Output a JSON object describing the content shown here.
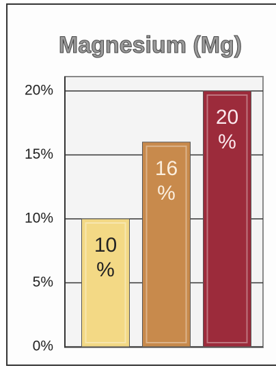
{
  "chart_data": {
    "type": "bar",
    "title": "Magnesium (Mg)",
    "categories": [
      null,
      null,
      null
    ],
    "values": [
      10,
      16,
      20
    ],
    "value_labels": [
      "10 %",
      "16 %",
      "20 %"
    ],
    "colors": [
      "#f3d985",
      "#c88a4c",
      "#9c2b3b"
    ],
    "label_colors": [
      "#222222",
      "#fbeedd",
      "#fbe8ee"
    ],
    "ylim": [
      0,
      20
    ],
    "yticks": [
      {
        "value": 0,
        "label": "0%"
      },
      {
        "value": 5,
        "label": "5%"
      },
      {
        "value": 10,
        "label": "10%"
      },
      {
        "value": 15,
        "label": "15%"
      },
      {
        "value": 20,
        "label": "20%"
      }
    ],
    "grid": true
  }
}
